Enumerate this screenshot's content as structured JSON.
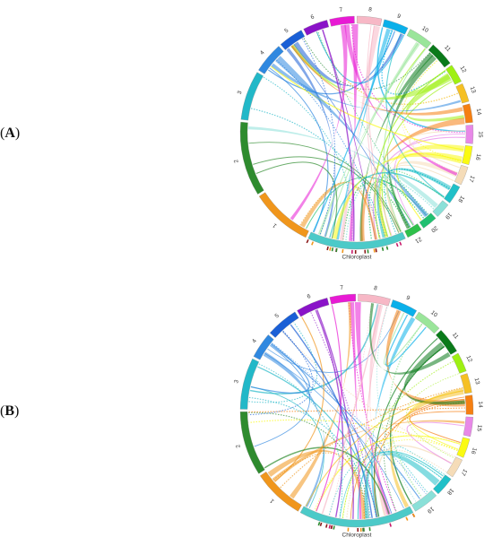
{
  "panels": [
    {
      "label_open": "(",
      "label_letter": "A",
      "label_close": ")",
      "segments": [
        {
          "name": "1",
          "color": "#f0961c",
          "size": 10
        },
        {
          "name": "2",
          "color": "#2e8b2e",
          "size": 12
        },
        {
          "name": "3",
          "color": "#22b8c8",
          "size": 8
        },
        {
          "name": "4",
          "color": "#2f88e0",
          "size": 5
        },
        {
          "name": "5",
          "color": "#1a5fd6",
          "size": 4
        },
        {
          "name": "6",
          "color": "#8a13c8",
          "size": 4
        },
        {
          "name": "7",
          "color": "#e81ad4",
          "size": 4
        },
        {
          "name": "8",
          "color": "#f7b8c6",
          "size": 4
        },
        {
          "name": "9",
          "color": "#0ab0ea",
          "size": 4
        },
        {
          "name": "10",
          "color": "#9ae59a",
          "size": 4
        },
        {
          "name": "11",
          "color": "#0a7a1a",
          "size": 4
        },
        {
          "name": "12",
          "color": "#9ef012",
          "size": 3
        },
        {
          "name": "13",
          "color": "#f5c024",
          "size": 3
        },
        {
          "name": "14",
          "color": "#f57f12",
          "size": 3
        },
        {
          "name": "15",
          "color": "#e888e8",
          "size": 3
        },
        {
          "name": "16",
          "color": "#fafa12",
          "size": 3
        },
        {
          "name": "17",
          "color": "#f5dcb8",
          "size": 3
        },
        {
          "name": "18",
          "color": "#20c0c8",
          "size": 3
        },
        {
          "name": "19",
          "color": "#8ae0d8",
          "size": 2.5
        },
        {
          "name": "20",
          "color": "#20c070",
          "size": 2.5
        },
        {
          "name": "21",
          "color": "#2ec04a",
          "size": 2.5
        },
        {
          "name": "Chloroplast",
          "color": "#4ccac8",
          "size": 16
        }
      ]
    },
    {
      "label_open": "(",
      "label_letter": "B",
      "label_close": ")",
      "segments": [
        {
          "name": "1",
          "color": "#f0961c",
          "size": 8
        },
        {
          "name": "2",
          "color": "#2e8b2e",
          "size": 10
        },
        {
          "name": "3",
          "color": "#22b8c8",
          "size": 8
        },
        {
          "name": "4",
          "color": "#2f88e0",
          "size": 4
        },
        {
          "name": "5",
          "color": "#1a5fd6",
          "size": 5
        },
        {
          "name": "6",
          "color": "#8a13c8",
          "size": 5
        },
        {
          "name": "7",
          "color": "#e81ad4",
          "size": 4
        },
        {
          "name": "8",
          "color": "#f7b8c6",
          "size": 5
        },
        {
          "name": "9",
          "color": "#0ab0ea",
          "size": 4
        },
        {
          "name": "10",
          "color": "#9ae59a",
          "size": 4
        },
        {
          "name": "11",
          "color": "#0a7a1a",
          "size": 4
        },
        {
          "name": "12",
          "color": "#9ef012",
          "size": 3
        },
        {
          "name": "13",
          "color": "#f5c024",
          "size": 3
        },
        {
          "name": "14",
          "color": "#f57f12",
          "size": 3
        },
        {
          "name": "15",
          "color": "#e888e8",
          "size": 3
        },
        {
          "name": "16",
          "color": "#fafa12",
          "size": 3
        },
        {
          "name": "17",
          "color": "#f5dcb8",
          "size": 3
        },
        {
          "name": "18",
          "color": "#20c0c8",
          "size": 3
        },
        {
          "name": "19",
          "color": "#8ae0d8",
          "size": 4
        },
        {
          "name": "Chloroplast",
          "color": "#4ccac8",
          "size": 18
        }
      ]
    }
  ]
}
